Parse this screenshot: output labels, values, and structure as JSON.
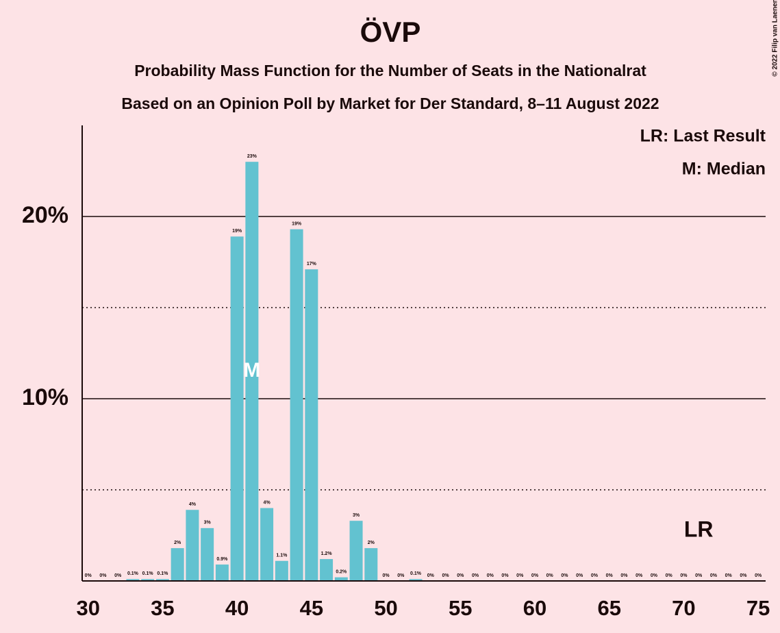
{
  "chart_data": {
    "type": "bar",
    "title": "ÖVP",
    "subtitle": "Probability Mass Function for the Number of Seats in the Nationalrat",
    "subtitle2": "Based on an Opinion Poll by Market for Der Standard, 8–11 August 2022",
    "copyright": "© 2022 Filip van Laenen",
    "legend": [
      "LR: Last Result",
      "M: Median"
    ],
    "color": "#62c2d0",
    "x": [
      30,
      31,
      32,
      33,
      34,
      35,
      36,
      37,
      38,
      39,
      40,
      41,
      42,
      43,
      44,
      45,
      46,
      47,
      48,
      49,
      50,
      51,
      52,
      53,
      54,
      55,
      56,
      57,
      58,
      59,
      60,
      61,
      62,
      63,
      64,
      65,
      66,
      67,
      68,
      69,
      70,
      71,
      72,
      73,
      74,
      75
    ],
    "values": [
      0,
      0,
      0,
      0.1,
      0.1,
      0.1,
      1.8,
      3.9,
      2.9,
      0.9,
      18.9,
      23,
      4,
      1.1,
      19.3,
      17.1,
      1.2,
      0.2,
      3.3,
      1.8,
      0,
      0,
      0.1,
      0,
      0,
      0,
      0,
      0,
      0,
      0,
      0,
      0,
      0,
      0,
      0,
      0,
      0,
      0,
      0,
      0,
      0,
      0,
      0,
      0,
      0,
      0
    ],
    "value_labels": [
      "0%",
      "0%",
      "0%",
      "0.1%",
      "0.1%",
      "0.1%",
      "2%",
      "4%",
      "3%",
      "0.9%",
      "19%",
      "23%",
      "4%",
      "1.1%",
      "19%",
      "17%",
      "1.2%",
      "0.2%",
      "3%",
      "2%",
      "0%",
      "0%",
      "0.1%",
      "0%",
      "0%",
      "0%",
      "0%",
      "0%",
      "0%",
      "0%",
      "0%",
      "0%",
      "0%",
      "0%",
      "0%",
      "0%",
      "0%",
      "0%",
      "0%",
      "0%",
      "0%",
      "0%",
      "0%",
      "0%",
      "0%",
      "0%"
    ],
    "xlim": [
      29.6,
      75.5
    ],
    "xticks": [
      30,
      35,
      40,
      45,
      50,
      55,
      60,
      65,
      70,
      75
    ],
    "ylim": [
      0,
      25
    ],
    "yticks": [
      {
        "value": 10,
        "label": "10%"
      },
      {
        "value": 20,
        "label": "20%"
      }
    ],
    "minor_yticks": [
      5,
      15
    ],
    "median": {
      "x": 41,
      "label": "M"
    },
    "last_result": {
      "x": 71,
      "label": "LR"
    }
  }
}
